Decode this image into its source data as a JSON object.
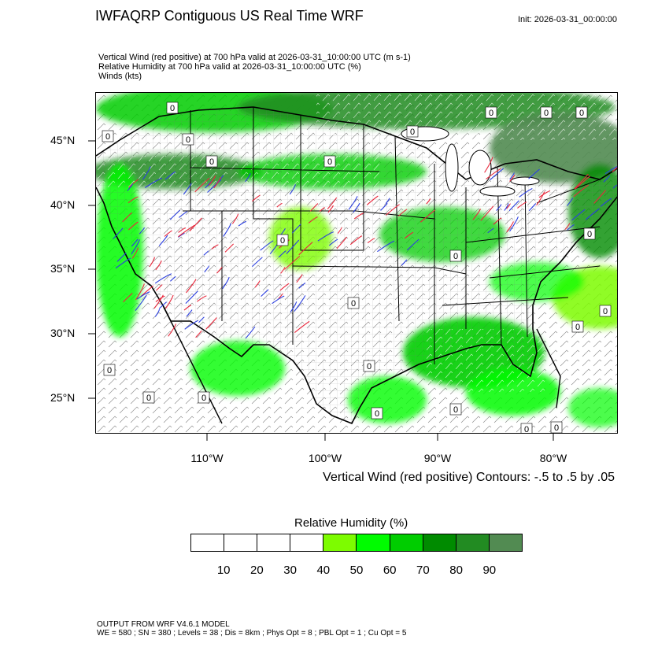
{
  "header": {
    "title": "IWFAQRP Contiguous US Real Time WRF",
    "init": "Init: 2026-03-31_00:00:00"
  },
  "subtitles": [
    "Vertical Wind (red positive) at 700 hPa valid at 2026-03-31_10:00:00 UTC   (m s-1)",
    "Relative Humidity at 700 hPa valid at 2026-03-31_10:00:00 UTC   (%)",
    "Winds   (kts)"
  ],
  "map": {
    "lat_labels": [
      "45°N",
      "40°N",
      "35°N",
      "30°N",
      "25°N"
    ],
    "lon_labels": [
      "110°W",
      "100°W",
      "90°W",
      "80°W"
    ],
    "contour_label": "0",
    "contour_note": "Vertical Wind (red positive) Contours: -.5 to .5 by .05",
    "colors": {
      "upward": "#e8283c",
      "downward": "#2a3ee0",
      "coast": "#000000",
      "state_lines": "#000000",
      "county_lines": "#555555"
    }
  },
  "colorbar": {
    "title": "Relative Humidity  (%)",
    "colors": [
      "#ffffff",
      "#ffffff",
      "#ffffff",
      "#ffffff",
      "#7dfc00",
      "#00fc00",
      "#00cd00",
      "#008b00",
      "#228b22",
      "#528b52"
    ],
    "labels": [
      "10",
      "20",
      "30",
      "40",
      "50",
      "60",
      "70",
      "80",
      "90"
    ]
  },
  "footer": {
    "line1": "OUTPUT FROM WRF V4.6.1 MODEL",
    "line2": "WE = 580 ; SN = 380 ; Levels = 38 ; Dis = 8km ; Phys Opt = 8 ; PBL Opt = 1 ; Cu Opt = 5"
  }
}
